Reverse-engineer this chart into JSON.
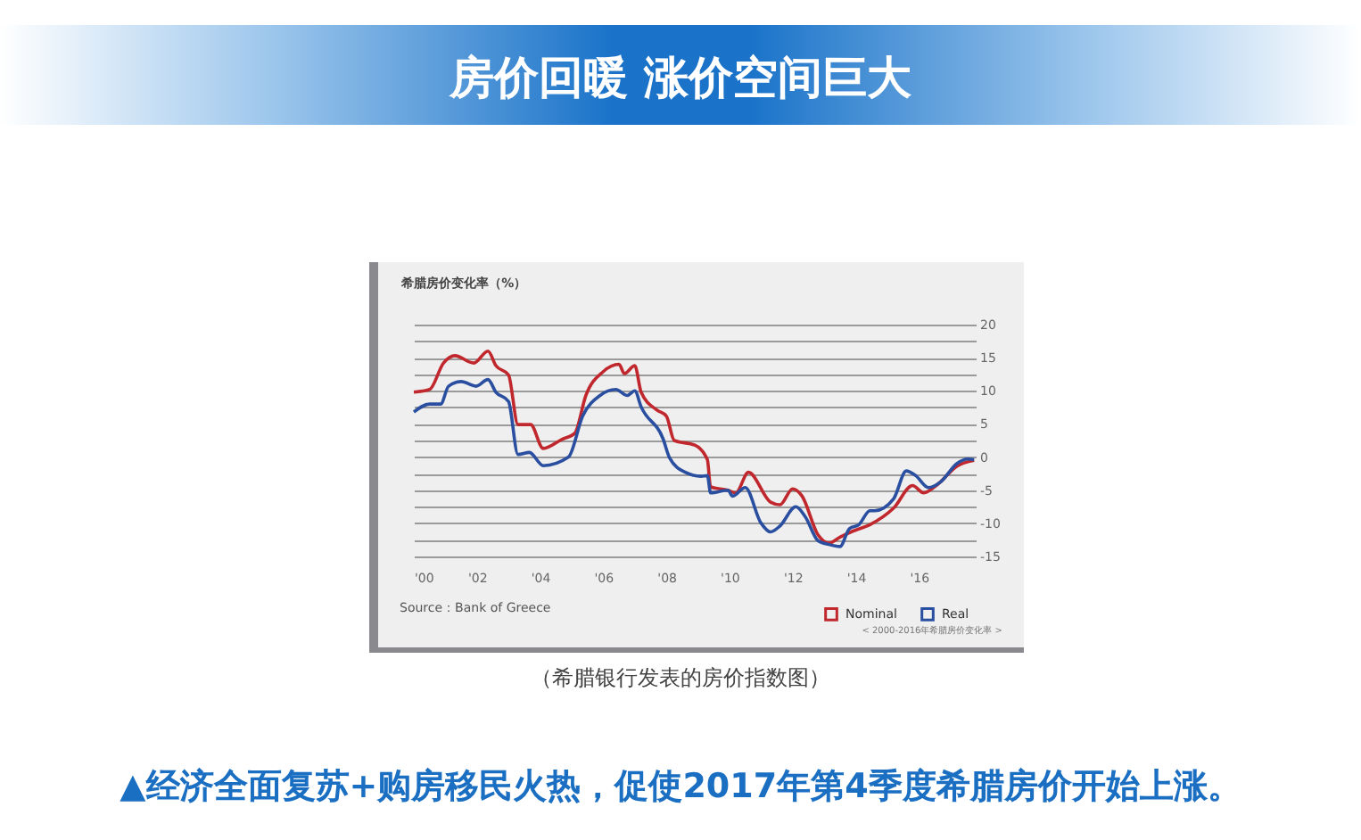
{
  "chart_data": {
    "type": "line",
    "title": "房价回暖 涨价空间巨大",
    "subtitle": "希腊房价变化率（%）",
    "xlim": [
      2000,
      2017.8
    ],
    "ylim": [
      -15,
      20
    ],
    "xticks": [
      {
        "value": 2000,
        "label": "'00"
      },
      {
        "value": 2002,
        "label": "'02"
      },
      {
        "value": 2004,
        "label": "'04"
      },
      {
        "value": 2006,
        "label": "'06"
      },
      {
        "value": 2008,
        "label": "'08"
      },
      {
        "value": 2010,
        "label": "'10"
      },
      {
        "value": 2012,
        "label": "'12"
      },
      {
        "value": 2014,
        "label": "'14"
      },
      {
        "value": 2016,
        "label": "'16"
      }
    ],
    "yticks": [
      -15,
      {
        "value": -12.5,
        "label": null
      },
      -10,
      {
        "value": -7.5,
        "label": null
      },
      -5,
      {
        "value": -2.5,
        "label": null
      },
      0,
      {
        "value": 2.5,
        "label": null
      },
      5,
      {
        "value": 7.5,
        "label": null
      },
      10,
      {
        "value": 12.5,
        "label": null
      },
      15,
      {
        "value": 17.5,
        "label": null
      },
      20
    ],
    "grid": "y",
    "legend": "bottom right",
    "series": [
      {
        "name": "Nominal",
        "color": "#c0282e",
        "x": [
          2000,
          2000.5,
          2000.94,
          2001.3,
          2001.9,
          2002.35,
          2002.6,
          2003.0,
          2003.3,
          2003.7,
          2004.1,
          2004.7,
          2005.1,
          2005.45,
          2006.0,
          2006.5,
          2006.67,
          2007.0,
          2007.2,
          2007.7,
          2008.0,
          2008.25,
          2008.9,
          2009.3,
          2009.4,
          2009.95,
          2010.2,
          2010.6,
          2011.3,
          2011.6,
          2012.0,
          2012.3,
          2012.8,
          2013.15,
          2013.5,
          2013.9,
          2014.45,
          2015.2,
          2015.8,
          2016.15,
          2016.6,
          2017.2,
          2017.75
        ],
        "values": [
          9.8,
          10.2,
          14.2,
          15.3,
          14.2,
          16,
          13.8,
          12.4,
          4.9,
          4.9,
          1.3,
          2.7,
          3.6,
          9.3,
          12.9,
          14,
          12.6,
          13.8,
          9.8,
          7.1,
          6.2,
          2.5,
          1.8,
          -0.4,
          -4.5,
          -5,
          -5.4,
          -2.3,
          -6.8,
          -7.2,
          -4.8,
          -5.9,
          -11.7,
          -13,
          -12.1,
          -11.2,
          -10.2,
          -7.7,
          -4.3,
          -5.4,
          -4.1,
          -1.4,
          -0.5
        ]
      },
      {
        "name": "Real",
        "color": "#2b4fa0",
        "x": [
          2000,
          2000.5,
          2000.85,
          2001.1,
          2001.5,
          2001.97,
          2002.35,
          2002.6,
          2003.0,
          2003.3,
          2003.66,
          2004.1,
          2004.9,
          2005.35,
          2005.9,
          2006.4,
          2006.76,
          2007.0,
          2007.2,
          2007.9,
          2008.1,
          2008.6,
          2009.1,
          2009.3,
          2009.4,
          2009.95,
          2010.1,
          2010.5,
          2010.99,
          2011.3,
          2011.6,
          2012.1,
          2012.4,
          2012.8,
          2013.15,
          2013.5,
          2013.8,
          2014.1,
          2014.45,
          2014.6,
          2015.2,
          2015.6,
          2015.9,
          2016.3,
          2016.7,
          2017.2,
          2017.55,
          2017.75
        ],
        "values": [
          6.8,
          8,
          8,
          10.7,
          11.4,
          10.7,
          11.7,
          9.8,
          8.4,
          0.4,
          0.7,
          -1.3,
          0,
          6.2,
          9.3,
          10.2,
          9.3,
          10,
          7.6,
          2.7,
          -0.1,
          -2.3,
          -2.9,
          -2.8,
          -5.4,
          -5,
          -5.9,
          -4.6,
          -9.9,
          -11.3,
          -10.4,
          -7.5,
          -9,
          -12.6,
          -13.2,
          -13.5,
          -10.8,
          -10.2,
          -8.1,
          -8.1,
          -6.3,
          -2.1,
          -2.8,
          -4.6,
          -3.7,
          -1,
          -0.3,
          -0.4
        ]
      }
    ],
    "annotations": [
      "Source：Bank of Greece",
      "< 2000-2016年希腊房价变化率 >",
      "（希腊银行发表的房价指数图）",
      "▲经济全面复苏+购房移民火热，促使2017年第4季度希腊房价开始上涨。"
    ]
  }
}
